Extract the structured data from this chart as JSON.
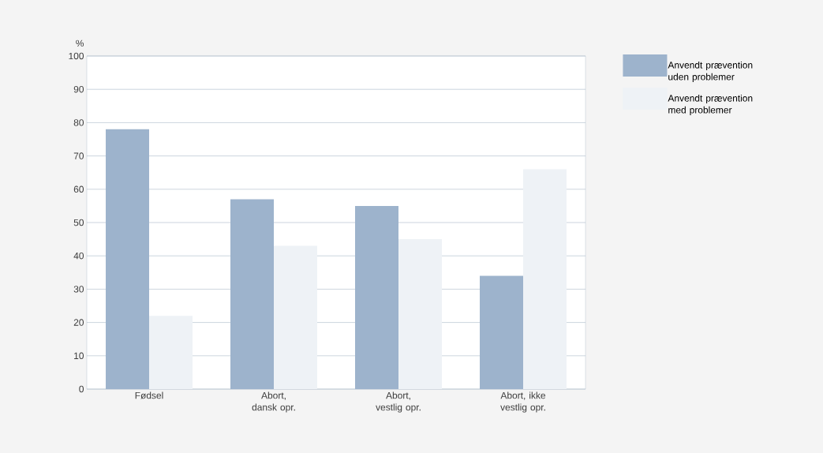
{
  "chart_data": {
    "type": "bar",
    "ylabel": "%",
    "categories": [
      "Fødsel",
      "Abort, dansk opr.",
      "Abort, vestlig opr.",
      "Abort, ikke vestlig opr."
    ],
    "series": [
      {
        "name": "Anvendt prævention uden problemer",
        "color": "#9db3cc",
        "values": [
          78,
          57,
          55,
          34
        ]
      },
      {
        "name": "Anvendt prævention med problemer",
        "color": "#eef2f6",
        "values": [
          22,
          43,
          45,
          66
        ]
      }
    ],
    "ylim": [
      0,
      100
    ],
    "yticks": [
      0,
      10,
      20,
      30,
      40,
      50,
      60,
      70,
      80,
      90,
      100
    ],
    "grid": "y",
    "legend": "top right"
  }
}
